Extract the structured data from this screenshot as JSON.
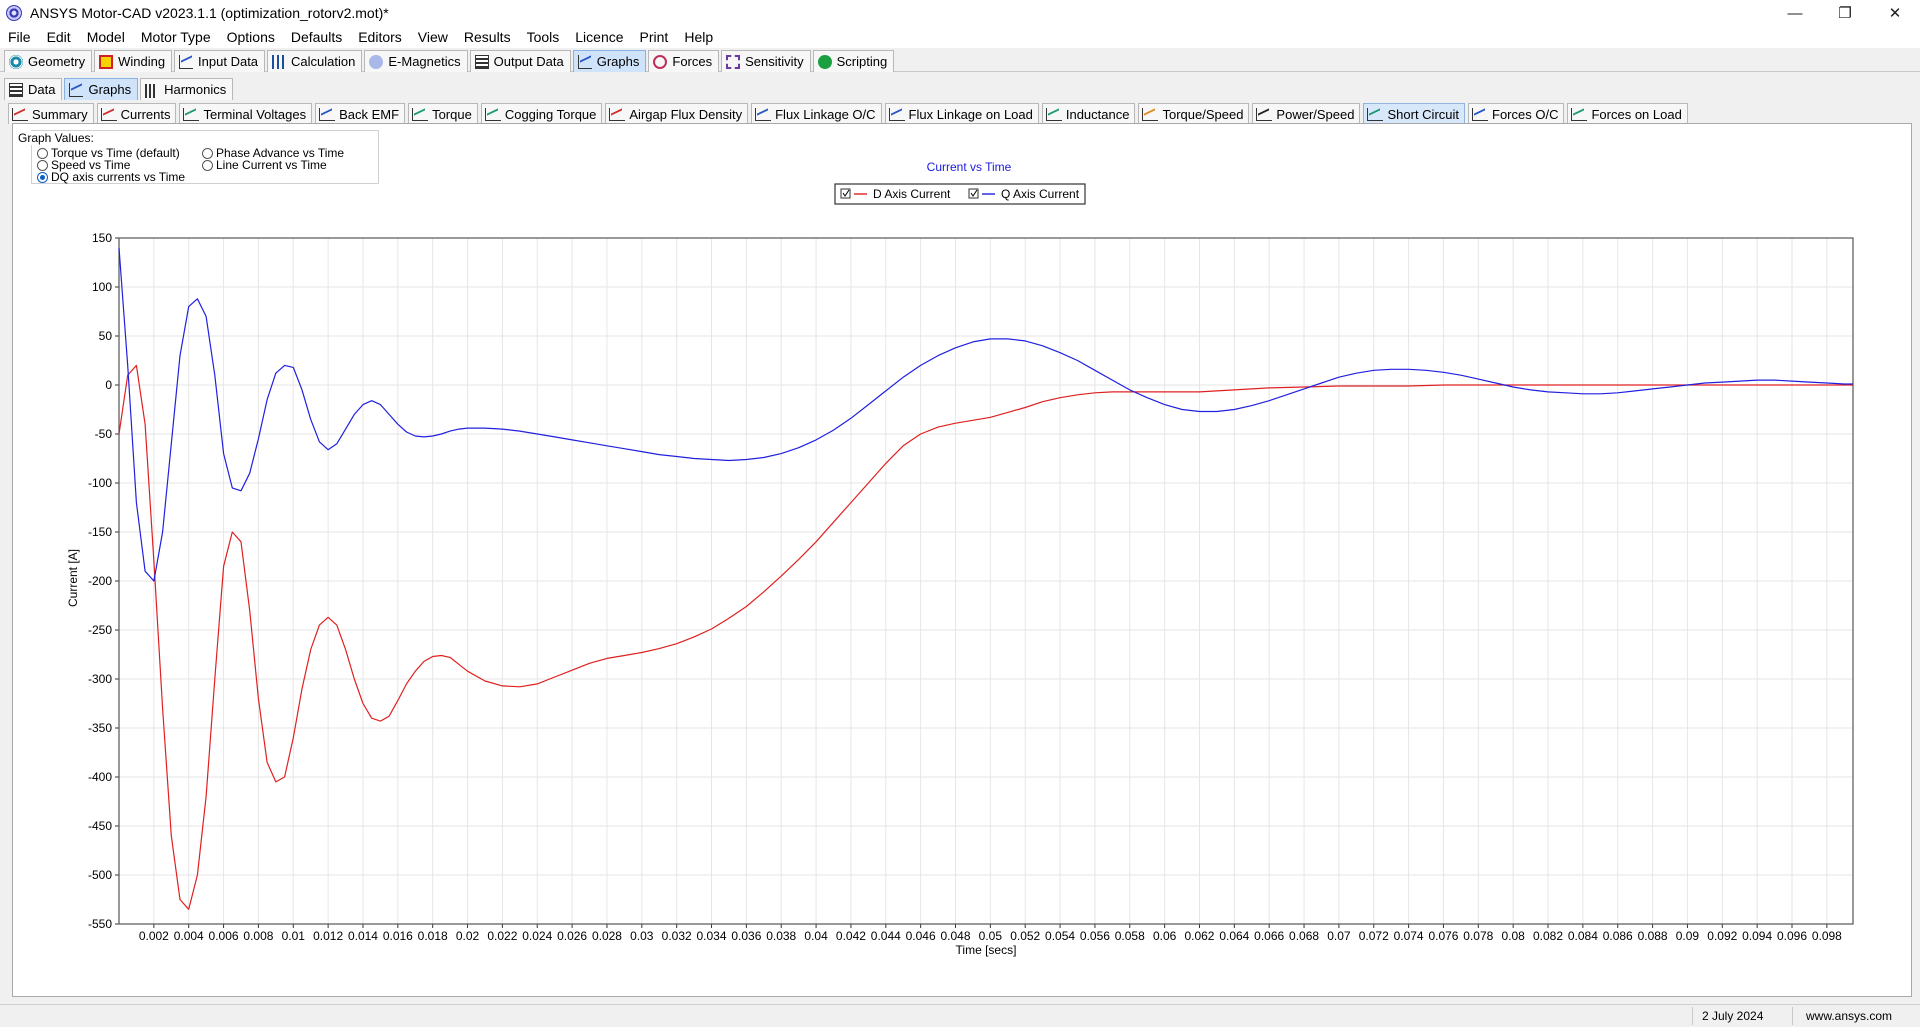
{
  "window": {
    "title": "ANSYS Motor-CAD v2023.1.1 (optimization_rotorv2.mot)*",
    "minimize": "—",
    "maximize": "❐",
    "close": "✕"
  },
  "menu": [
    "File",
    "Edit",
    "Model",
    "Motor Type",
    "Options",
    "Defaults",
    "Editors",
    "View",
    "Results",
    "Tools",
    "Licence",
    "Print",
    "Help"
  ],
  "main_tabs": [
    {
      "label": "Geometry",
      "icon": "target-icon"
    },
    {
      "label": "Winding",
      "icon": "winding-icon"
    },
    {
      "label": "Input Data",
      "icon": "chart-icon"
    },
    {
      "label": "Calculation",
      "icon": "bars-icon"
    },
    {
      "label": "E-Magnetics",
      "icon": "emag-icon"
    },
    {
      "label": "Output Data",
      "icon": "grid-icon"
    },
    {
      "label": "Graphs",
      "icon": "chart-icon",
      "active": true
    },
    {
      "label": "Forces",
      "icon": "forces-icon"
    },
    {
      "label": "Sensitivity",
      "icon": "sensitivity-icon"
    },
    {
      "label": "Scripting",
      "icon": "scripting-icon"
    }
  ],
  "secondary_tabs": [
    {
      "label": "Data",
      "icon": "grid-icon"
    },
    {
      "label": "Graphs",
      "icon": "chart-icon",
      "active": true
    },
    {
      "label": "Harmonics",
      "icon": "harmonics-icon"
    }
  ],
  "graph_tabs": [
    {
      "label": "Summary",
      "color": "r"
    },
    {
      "label": "Currents",
      "color": "r"
    },
    {
      "label": "Terminal Voltages",
      "color": "g"
    },
    {
      "label": "Back EMF",
      "color": "b"
    },
    {
      "label": "Torque",
      "color": "g"
    },
    {
      "label": "Cogging Torque",
      "color": "g"
    },
    {
      "label": "Airgap Flux Density",
      "color": "r"
    },
    {
      "label": "Flux Linkage O/C",
      "color": "b"
    },
    {
      "label": "Flux Linkage on Load",
      "color": "b"
    },
    {
      "label": "Inductance",
      "color": "g"
    },
    {
      "label": "Torque/Speed",
      "color": "o"
    },
    {
      "label": "Power/Speed",
      "color": "k"
    },
    {
      "label": "Short Circuit",
      "color": "g",
      "active": true
    },
    {
      "label": "Forces O/C",
      "color": "b"
    },
    {
      "label": "Forces on Load",
      "color": "g"
    }
  ],
  "graph_values": {
    "title": "Graph Values:",
    "options": [
      {
        "label": "Torque vs Time (default)",
        "selected": false
      },
      {
        "label": "Speed vs Time",
        "selected": false
      },
      {
        "label": "DQ axis currents vs Time",
        "selected": true
      },
      {
        "label": "Phase Advance vs Time",
        "selected": false
      },
      {
        "label": "Line Current vs Time",
        "selected": false
      }
    ]
  },
  "chart_data": {
    "type": "line",
    "title": "Current vs Time",
    "xlabel": "Time [secs]",
    "ylabel": "Current [A]",
    "xlim": [
      0,
      0.0995
    ],
    "ylim": [
      -550,
      150
    ],
    "yticks": [
      150,
      100,
      50,
      0,
      -50,
      -100,
      -150,
      -200,
      -250,
      -300,
      -350,
      -400,
      -450,
      -500,
      -550
    ],
    "xticks": [
      "0.002",
      "0.004",
      "0.006",
      "0.008",
      "0.01",
      "0.012",
      "0.014",
      "0.016",
      "0.018",
      "0.02",
      "0.022",
      "0.024",
      "0.026",
      "0.028",
      "0.03",
      "0.032",
      "0.034",
      "0.036",
      "0.038",
      "0.04",
      "0.042",
      "0.044",
      "0.046",
      "0.048",
      "0.05",
      "0.052",
      "0.054",
      "0.056",
      "0.058",
      "0.06",
      "0.062",
      "0.064",
      "0.066",
      "0.068",
      "0.07",
      "0.072",
      "0.074",
      "0.076",
      "0.078",
      "0.08",
      "0.082",
      "0.084",
      "0.086",
      "0.088",
      "0.09",
      "0.092",
      "0.094",
      "0.096",
      "0.098"
    ],
    "grid": true,
    "legend_position": "top-center",
    "series": [
      {
        "name": "D Axis Current",
        "color": "#e02020",
        "x": [
          0,
          0.0005,
          0.001,
          0.0015,
          0.002,
          0.0025,
          0.003,
          0.0035,
          0.004,
          0.0045,
          0.005,
          0.0055,
          0.006,
          0.0065,
          0.007,
          0.0075,
          0.008,
          0.0085,
          0.009,
          0.0095,
          0.01,
          0.0105,
          0.011,
          0.0115,
          0.012,
          0.0125,
          0.013,
          0.0135,
          0.014,
          0.0145,
          0.015,
          0.0155,
          0.016,
          0.0165,
          0.017,
          0.0175,
          0.018,
          0.0185,
          0.019,
          0.0195,
          0.02,
          0.021,
          0.022,
          0.023,
          0.024,
          0.025,
          0.026,
          0.027,
          0.028,
          0.029,
          0.03,
          0.031,
          0.032,
          0.033,
          0.034,
          0.035,
          0.036,
          0.037,
          0.038,
          0.039,
          0.04,
          0.041,
          0.042,
          0.043,
          0.044,
          0.045,
          0.046,
          0.047,
          0.048,
          0.049,
          0.05,
          0.051,
          0.052,
          0.053,
          0.054,
          0.055,
          0.056,
          0.057,
          0.058,
          0.06,
          0.062,
          0.064,
          0.066,
          0.068,
          0.07,
          0.072,
          0.074,
          0.076,
          0.078,
          0.08,
          0.082,
          0.084,
          0.086,
          0.088,
          0.09,
          0.092,
          0.094,
          0.096,
          0.098,
          0.0995
        ],
        "y": [
          -50,
          10,
          20,
          -40,
          -180,
          -330,
          -460,
          -525,
          -535,
          -500,
          -420,
          -300,
          -185,
          -150,
          -160,
          -230,
          -320,
          -385,
          -405,
          -400,
          -360,
          -310,
          -270,
          -245,
          -237,
          -245,
          -270,
          -300,
          -325,
          -340,
          -343,
          -338,
          -322,
          -305,
          -292,
          -282,
          -277,
          -276,
          -278,
          -285,
          -292,
          -302,
          -307,
          -308,
          -305,
          -298,
          -291,
          -284,
          -279,
          -276,
          -273,
          -269,
          -264,
          -257,
          -249,
          -238,
          -226,
          -211,
          -195,
          -178,
          -160,
          -140,
          -120,
          -100,
          -80,
          -62,
          -50,
          -43,
          -39,
          -36,
          -33,
          -28,
          -23,
          -17,
          -13,
          -10,
          -8,
          -7,
          -7,
          -7,
          -7,
          -5,
          -3,
          -2,
          -1,
          -1,
          -1,
          0,
          0,
          0,
          0,
          0,
          0,
          0,
          0,
          0,
          0,
          0,
          0,
          0
        ]
      },
      {
        "name": "Q Axis Current",
        "color": "#2020e0",
        "x": [
          0,
          0.0005,
          0.001,
          0.0015,
          0.002,
          0.0025,
          0.003,
          0.0035,
          0.004,
          0.0045,
          0.005,
          0.0055,
          0.006,
          0.0065,
          0.007,
          0.0075,
          0.008,
          0.0085,
          0.009,
          0.0095,
          0.01,
          0.0105,
          0.011,
          0.0115,
          0.012,
          0.0125,
          0.013,
          0.0135,
          0.014,
          0.0145,
          0.015,
          0.0155,
          0.016,
          0.0165,
          0.017,
          0.0175,
          0.018,
          0.0185,
          0.019,
          0.0195,
          0.02,
          0.021,
          0.022,
          0.023,
          0.024,
          0.025,
          0.026,
          0.027,
          0.028,
          0.029,
          0.03,
          0.031,
          0.032,
          0.033,
          0.034,
          0.035,
          0.036,
          0.037,
          0.038,
          0.039,
          0.04,
          0.041,
          0.042,
          0.043,
          0.044,
          0.045,
          0.046,
          0.047,
          0.048,
          0.049,
          0.05,
          0.051,
          0.052,
          0.053,
          0.054,
          0.055,
          0.056,
          0.057,
          0.058,
          0.059,
          0.06,
          0.061,
          0.062,
          0.063,
          0.064,
          0.065,
          0.066,
          0.067,
          0.068,
          0.069,
          0.07,
          0.071,
          0.072,
          0.073,
          0.074,
          0.075,
          0.076,
          0.077,
          0.078,
          0.079,
          0.08,
          0.081,
          0.082,
          0.083,
          0.084,
          0.085,
          0.086,
          0.087,
          0.088,
          0.089,
          0.09,
          0.091,
          0.092,
          0.093,
          0.094,
          0.095,
          0.096,
          0.097,
          0.098,
          0.099,
          0.0995
        ],
        "y": [
          140,
          20,
          -120,
          -190,
          -200,
          -150,
          -60,
          30,
          80,
          88,
          70,
          10,
          -70,
          -105,
          -108,
          -90,
          -55,
          -15,
          12,
          20,
          18,
          -5,
          -35,
          -58,
          -66,
          -60,
          -45,
          -30,
          -20,
          -16,
          -20,
          -30,
          -40,
          -48,
          -52,
          -53,
          -52,
          -50,
          -47,
          -45,
          -44,
          -44,
          -45,
          -47,
          -50,
          -53,
          -56,
          -59,
          -62,
          -65,
          -68,
          -71,
          -73,
          -75,
          -76,
          -77,
          -76,
          -74,
          -70,
          -64,
          -56,
          -46,
          -34,
          -20,
          -6,
          8,
          20,
          30,
          38,
          44,
          47,
          47,
          45,
          40,
          33,
          25,
          15,
          5,
          -5,
          -13,
          -20,
          -25,
          -27,
          -27,
          -25,
          -21,
          -16,
          -10,
          -4,
          2,
          8,
          12,
          15,
          16,
          16,
          15,
          13,
          10,
          6,
          2,
          -2,
          -5,
          -7,
          -8,
          -9,
          -9,
          -8,
          -6,
          -4,
          -2,
          0,
          2,
          3,
          4,
          5,
          5,
          4,
          3,
          2,
          1,
          1
        ]
      }
    ]
  },
  "status": {
    "date": "2 July 2024",
    "url": "www.ansys.com"
  }
}
